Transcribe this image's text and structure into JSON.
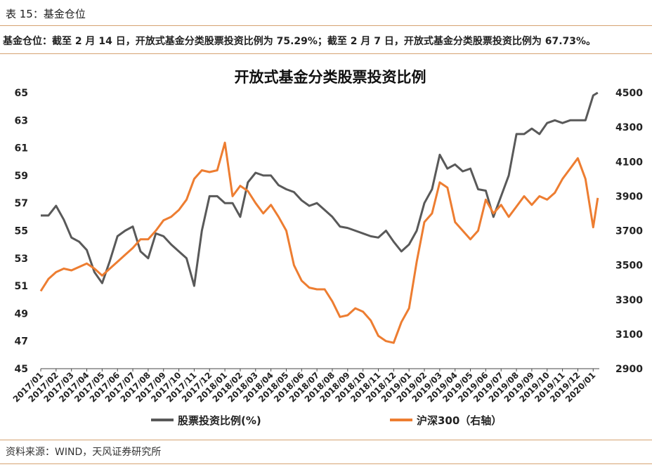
{
  "caption": "表 15：基金仓位",
  "summary": "基金仓位：截至 2 月 14 日，开放式基金分类股票投资比例为 75.29%；截至 2 月 7 日，开放式基金分类股票投资比例为 67.73%。",
  "source": "资料来源：WIND，天风证券研究所",
  "chart_data": {
    "type": "line",
    "title": "开放式基金分类股票投资比例",
    "x_labels": [
      "2017/01",
      "2017/02",
      "2017/03",
      "2017/04",
      "2017/05",
      "2017/06",
      "2017/07",
      "2017/08",
      "2017/09",
      "2017/10",
      "2017/11",
      "2017/12",
      "2018/01",
      "2018/02",
      "2018/03",
      "2018/04",
      "2018/05",
      "2018/06",
      "2018/07",
      "2018/08",
      "2018/09",
      "2018/10",
      "2018/11",
      "2018/12",
      "2019/01",
      "2019/02",
      "2019/03",
      "2019/04",
      "2019/05",
      "2019/06",
      "2019/07",
      "2019/08",
      "2019/09",
      "2019/10",
      "2019/11",
      "2019/12",
      "2020/01"
    ],
    "y_left": {
      "range": [
        45,
        65
      ],
      "ticks": [
        45,
        47,
        49,
        51,
        53,
        55,
        57,
        59,
        61,
        63,
        65
      ]
    },
    "y_right": {
      "range": [
        2900,
        4500
      ],
      "ticks": [
        2900,
        3100,
        3300,
        3500,
        3700,
        3900,
        4100,
        4300,
        4500
      ]
    },
    "legend_position": "bottom",
    "grid": false,
    "colors": {
      "fund": "#595959",
      "csi": "#ed7d31",
      "rule": "#d6a271"
    },
    "series": [
      {
        "name": "股票投资比例(%)",
        "axis": "left",
        "x": [
          0,
          0.5,
          1,
          1.5,
          2,
          2.5,
          3,
          3.5,
          4,
          4.5,
          5,
          5.5,
          6,
          6.5,
          7,
          7.5,
          8,
          8.5,
          9,
          9.5,
          10,
          10.5,
          11,
          11.5,
          12,
          12.5,
          13,
          13.5,
          14,
          14.5,
          15,
          15.5,
          16,
          16.5,
          17,
          17.5,
          18,
          18.5,
          19,
          19.5,
          20,
          20.5,
          21,
          21.5,
          22,
          22.5,
          23,
          23.5,
          24,
          24.5,
          25,
          25.5,
          26,
          26.5,
          27,
          27.5,
          28,
          28.5,
          29,
          29.5,
          30,
          30.5,
          31,
          31.5,
          32,
          32.5,
          33,
          33.5,
          34,
          34.5,
          35,
          35.5,
          36,
          36.3
        ],
        "values": [
          56.1,
          56.1,
          56.8,
          55.8,
          54.5,
          54.2,
          53.6,
          52.0,
          51.2,
          52.8,
          54.6,
          55.0,
          55.3,
          53.5,
          53.0,
          54.8,
          54.6,
          54.0,
          53.5,
          53.0,
          51.0,
          55.0,
          57.5,
          57.5,
          57.0,
          57.0,
          56.0,
          58.5,
          59.2,
          59.0,
          59.0,
          58.3,
          58.0,
          57.8,
          57.2,
          56.8,
          57.0,
          56.5,
          56.0,
          55.3,
          55.2,
          55.0,
          54.8,
          54.6,
          54.5,
          55.0,
          54.2,
          53.5,
          54.0,
          55.0,
          57.0,
          58.0,
          60.5,
          59.5,
          59.8,
          59.3,
          59.5,
          58.0,
          57.9,
          56.0,
          57.5,
          59.0,
          62.0,
          62.0,
          62.4,
          62.0,
          62.8,
          63.0,
          62.8,
          63.0,
          63.0,
          63.0,
          64.8,
          65.0
        ]
      },
      {
        "name": "沪深300（右轴）",
        "axis": "right",
        "x": [
          0,
          0.5,
          1,
          1.5,
          2,
          2.5,
          3,
          3.5,
          4,
          4.5,
          5,
          5.5,
          6,
          6.5,
          7,
          7.5,
          8,
          8.5,
          9,
          9.5,
          10,
          10.5,
          11,
          11.5,
          12,
          12.5,
          13,
          13.5,
          14,
          14.5,
          15,
          15.5,
          16,
          16.5,
          17,
          17.5,
          18,
          18.5,
          19,
          19.5,
          20,
          20.5,
          21,
          21.5,
          22,
          22.5,
          23,
          23.5,
          24,
          24.5,
          25,
          25.5,
          26,
          26.5,
          27,
          27.5,
          28,
          28.5,
          29,
          29.5,
          30,
          30.5,
          31,
          31.5,
          32,
          32.5,
          33,
          33.5,
          34,
          34.5,
          35,
          35.5,
          36,
          36.3
        ],
        "values": [
          3350,
          3420,
          3460,
          3480,
          3470,
          3490,
          3510,
          3480,
          3440,
          3480,
          3520,
          3560,
          3600,
          3650,
          3650,
          3700,
          3760,
          3780,
          3820,
          3880,
          4000,
          4050,
          4040,
          4050,
          4210,
          3900,
          3960,
          3930,
          3860,
          3800,
          3850,
          3780,
          3700,
          3500,
          3410,
          3370,
          3360,
          3360,
          3290,
          3200,
          3210,
          3250,
          3230,
          3180,
          3090,
          3060,
          3050,
          3170,
          3250,
          3520,
          3750,
          3800,
          3980,
          3950,
          3750,
          3700,
          3650,
          3700,
          3880,
          3800,
          3850,
          3780,
          3840,
          3900,
          3850,
          3900,
          3880,
          3920,
          4000,
          4060,
          4120,
          4000,
          3720,
          3890
        ]
      }
    ]
  }
}
